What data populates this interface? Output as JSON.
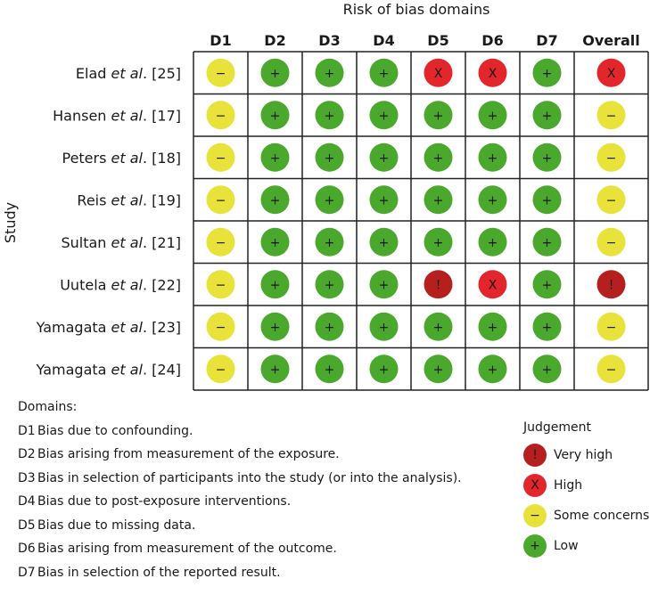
{
  "chart_data": {
    "type": "table",
    "title": "Risk of bias domains",
    "ylabel": "Study",
    "columns": [
      "D1",
      "D2",
      "D3",
      "D4",
      "D5",
      "D6",
      "D7",
      "Overall"
    ],
    "studies": [
      {
        "name": "Elad",
        "etal": "et al",
        "ref": ". [25]",
        "ratings": [
          "some",
          "low",
          "low",
          "low",
          "high",
          "high",
          "low",
          "high"
        ]
      },
      {
        "name": "Hansen",
        "etal": "et al",
        "ref": ". [17]",
        "ratings": [
          "some",
          "low",
          "low",
          "low",
          "low",
          "low",
          "low",
          "some"
        ]
      },
      {
        "name": "Peters",
        "etal": "et al",
        "ref": ". [18]",
        "ratings": [
          "some",
          "low",
          "low",
          "low",
          "low",
          "low",
          "low",
          "some"
        ]
      },
      {
        "name": "Reis",
        "etal": "et al",
        "ref": ". [19]",
        "ratings": [
          "some",
          "low",
          "low",
          "low",
          "low",
          "low",
          "low",
          "some"
        ]
      },
      {
        "name": "Sultan",
        "etal": "et al",
        "ref": ". [21]",
        "ratings": [
          "some",
          "low",
          "low",
          "low",
          "low",
          "low",
          "low",
          "some"
        ]
      },
      {
        "name": "Uutela",
        "etal": "et al",
        "ref": ". [22]",
        "ratings": [
          "some",
          "low",
          "low",
          "low",
          "veryhigh",
          "high",
          "low",
          "veryhigh"
        ]
      },
      {
        "name": "Yamagata",
        "etal": "et al",
        "ref": ". [23]",
        "ratings": [
          "some",
          "low",
          "low",
          "low",
          "low",
          "low",
          "low",
          "some"
        ]
      },
      {
        "name": "Yamagata",
        "etal": "et al",
        "ref": ". [24]",
        "ratings": [
          "some",
          "low",
          "low",
          "low",
          "low",
          "low",
          "low",
          "some"
        ]
      }
    ],
    "judgements": {
      "veryhigh": {
        "label": "Very high",
        "symbol": "!",
        "color": "#b5201f"
      },
      "high": {
        "label": "High",
        "symbol": "X",
        "color": "#e3262b"
      },
      "some": {
        "label": "Some concerns",
        "symbol": "−",
        "color": "#e8e23a"
      },
      "low": {
        "label": "Low",
        "symbol": "+",
        "color": "#4aa82c"
      }
    }
  },
  "legend": {
    "domains_title": "Domains:",
    "domains": [
      {
        "code": "D1",
        "text": "Bias due to confounding."
      },
      {
        "code": "D2",
        "text": "Bias arising from measurement of the exposure."
      },
      {
        "code": "D3",
        "text": "Bias in selection of participants into the study (or into the analysis)."
      },
      {
        "code": "D4",
        "text": "Bias due to post-exposure interventions."
      },
      {
        "code": "D5",
        "text": "Bias due to missing data."
      },
      {
        "code": "D6",
        "text": "Bias arising from measurement of the outcome."
      },
      {
        "code": "D7",
        "text": "Bias in selection of the reported result."
      }
    ],
    "judgement_title": "Judgement",
    "judgement_order": [
      "veryhigh",
      "high",
      "some",
      "low"
    ]
  }
}
